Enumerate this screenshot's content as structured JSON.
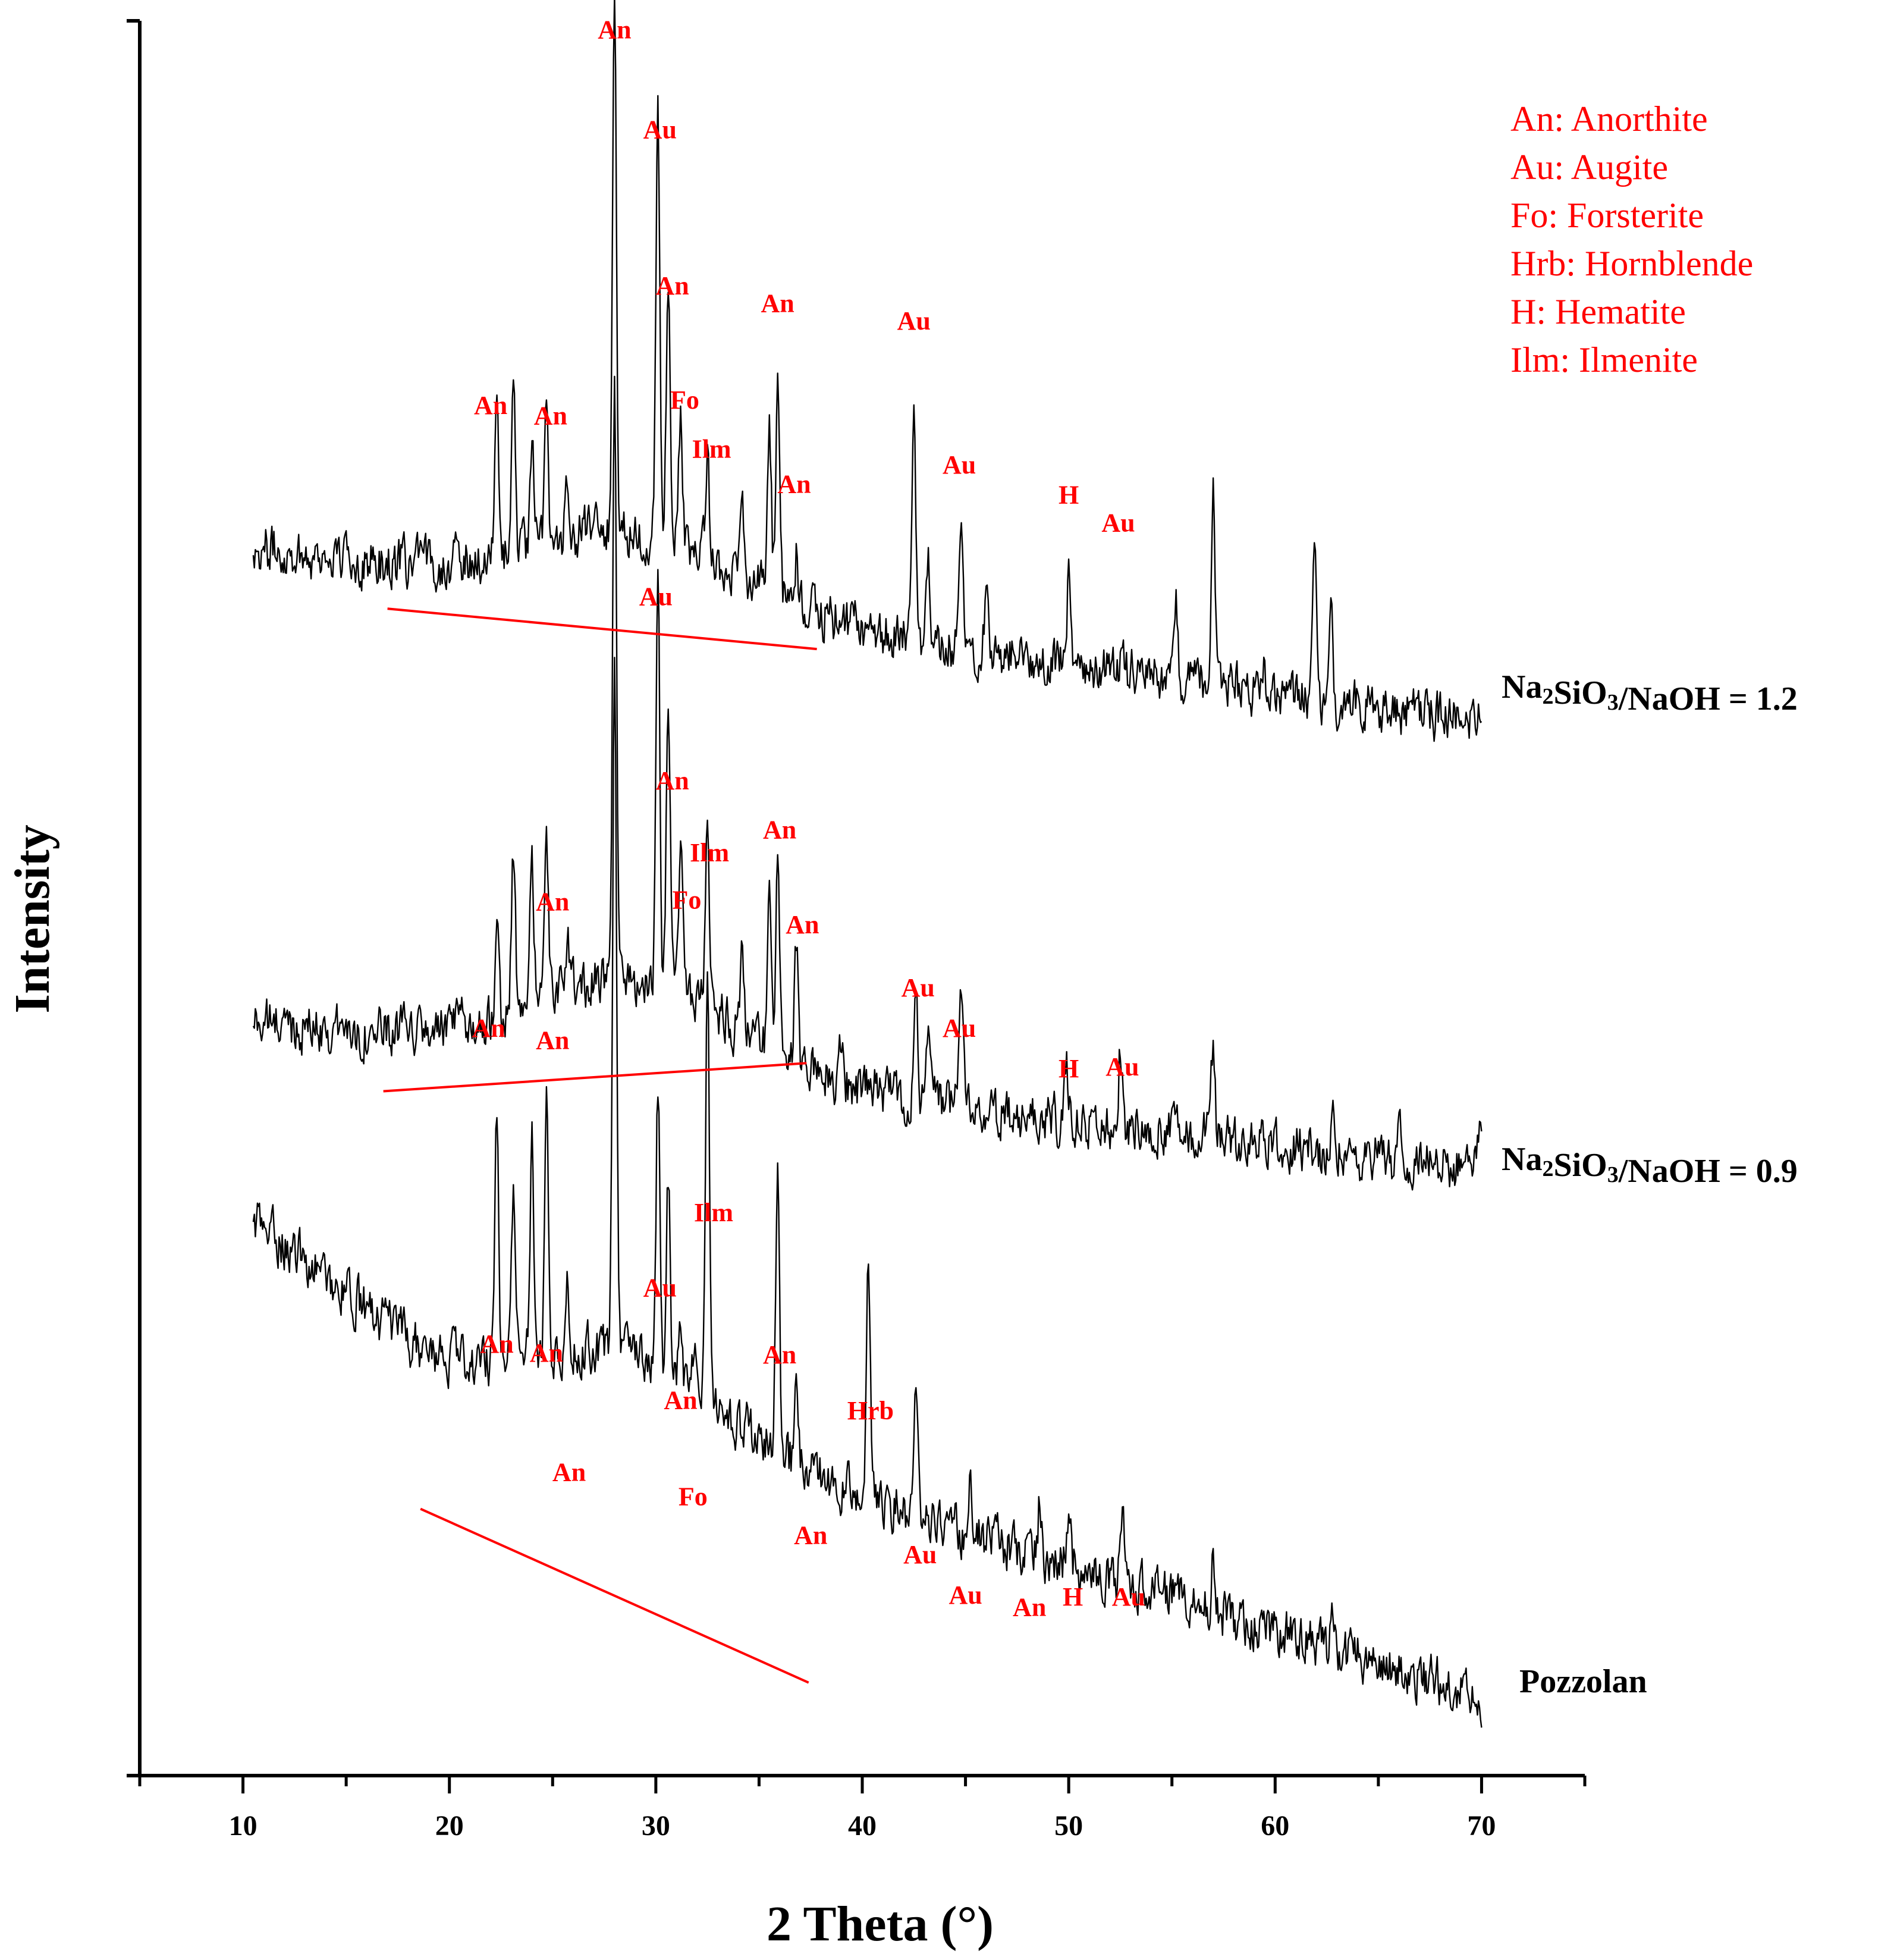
{
  "chart_data": {
    "type": "line",
    "title": "",
    "xlabel": "2 Theta (°)",
    "ylabel": "Intensity",
    "xlim": [
      5,
      75
    ],
    "ylim": [
      0,
      100
    ],
    "xticks": [
      10,
      20,
      30,
      40,
      50,
      60,
      70
    ],
    "legend": {
      "placement": "top-right",
      "entries": [
        "An: Anorthite",
        "Au: Augite",
        "Fo: Forsterite",
        "Hrb: Hornblende",
        "H: Hematite",
        "Ilm: Ilmenite"
      ]
    },
    "series": [
      {
        "name": "Na2SiO3/NaOH = 1.2",
        "label_parts": {
          "pre": "Na",
          "sub1": "2",
          "mid": "SiO",
          "sub2": "3",
          "post": "/NaOH = 1.2"
        },
        "x_start": 10.5,
        "x_end": 70.0,
        "base_start": 70.0,
        "base_end": 60.0,
        "noise": 2.2,
        "peaks": [
          [
            22.3,
            8
          ],
          [
            23.1,
            9
          ],
          [
            24.0,
            5
          ],
          [
            24.7,
            7
          ],
          [
            25.7,
            3
          ],
          [
            28.0,
            30
          ],
          [
            30.1,
            24
          ],
          [
            30.6,
            15
          ],
          [
            31.2,
            7
          ],
          [
            32.5,
            6
          ],
          [
            34.2,
            4
          ],
          [
            35.5,
            10
          ],
          [
            35.9,
            13
          ],
          [
            36.8,
            3
          ],
          [
            42.5,
            14
          ],
          [
            43.2,
            5
          ],
          [
            44.8,
            6
          ],
          [
            46.0,
            3
          ],
          [
            50.0,
            5
          ],
          [
            52.6,
            3
          ],
          [
            55.2,
            4
          ],
          [
            57.0,
            11
          ],
          [
            59.4,
            2
          ],
          [
            61.9,
            9
          ],
          [
            62.7,
            7
          ]
        ],
        "amorphous_hump": {
          "center": 29.0,
          "amp": 4,
          "width": 7
        },
        "color": "#000000"
      },
      {
        "name": "Na2SiO3/NaOH = 0.9",
        "label_parts": {
          "pre": "Na",
          "sub1": "2",
          "mid": "SiO",
          "sub2": "3",
          "post": "/NaOH = 0.9"
        },
        "x_start": 10.5,
        "x_end": 70.0,
        "base_start": 43.0,
        "base_end": 34.5,
        "noise": 2.2,
        "peaks": [
          [
            22.3,
            6
          ],
          [
            23.1,
            9
          ],
          [
            24.0,
            8
          ],
          [
            24.7,
            9
          ],
          [
            25.7,
            3
          ],
          [
            28.0,
            33
          ],
          [
            30.1,
            22
          ],
          [
            30.6,
            17
          ],
          [
            31.2,
            9
          ],
          [
            32.5,
            12
          ],
          [
            34.2,
            4
          ],
          [
            35.5,
            9
          ],
          [
            35.9,
            13
          ],
          [
            36.8,
            7
          ],
          [
            39.0,
            2
          ],
          [
            42.6,
            7
          ],
          [
            43.2,
            4
          ],
          [
            44.8,
            6
          ],
          [
            49.9,
            3
          ],
          [
            52.5,
            5
          ],
          [
            57.0,
            5
          ],
          [
            62.8,
            4
          ],
          [
            66.0,
            2
          ],
          [
            69.9,
            2
          ]
        ],
        "amorphous_hump": {
          "center": 29.0,
          "amp": 5,
          "width": 7
        },
        "color": "#000000"
      },
      {
        "name": "Pozzolan",
        "label_parts": {
          "pre": "Pozzolan",
          "sub1": "",
          "mid": "",
          "sub2": "",
          "post": ""
        },
        "x_start": 10.5,
        "x_end": 70.0,
        "base_start": 27.0,
        "base_end": 4.5,
        "noise": 2.2,
        "peaks": [
          [
            22.3,
            14
          ],
          [
            23.1,
            10
          ],
          [
            24.0,
            13
          ],
          [
            24.7,
            15
          ],
          [
            25.7,
            4
          ],
          [
            28.0,
            40
          ],
          [
            30.1,
            16
          ],
          [
            30.6,
            11
          ],
          [
            31.2,
            4
          ],
          [
            31.9,
            3
          ],
          [
            32.5,
            25
          ],
          [
            35.9,
            17
          ],
          [
            36.8,
            6
          ],
          [
            40.3,
            14
          ],
          [
            42.6,
            8
          ],
          [
            45.2,
            3
          ],
          [
            48.6,
            3
          ],
          [
            50.0,
            3
          ],
          [
            52.6,
            4
          ],
          [
            57.0,
            3
          ],
          [
            62.8,
            2
          ]
        ],
        "amorphous_hump": {
          "center": 29.0,
          "amp": 4,
          "width": 6
        },
        "color": "#000000"
      }
    ],
    "baselines": [
      {
        "series": "Na2SiO3/NaOH = 1.2",
        "from": [
          17.0,
          66.5
        ],
        "to": [
          37.8,
          64.2
        ]
      },
      {
        "series": "Na2SiO3/NaOH = 0.9",
        "from": [
          16.8,
          39.0
        ],
        "to": [
          37.3,
          40.6
        ]
      },
      {
        "series": "Pozzolan",
        "from": [
          18.6,
          15.2
        ],
        "to": [
          37.4,
          5.3
        ]
      }
    ],
    "annotations": [
      {
        "series": "Na2SiO3/NaOH = 1.2",
        "text": "An",
        "x": 28.0,
        "y": 99.0
      },
      {
        "series": "Na2SiO3/NaOH = 1.2",
        "text": "Au",
        "x": 30.2,
        "y": 93.3
      },
      {
        "series": "Na2SiO3/NaOH = 1.2",
        "text": "An",
        "x": 30.8,
        "y": 84.4
      },
      {
        "series": "Na2SiO3/NaOH = 1.2",
        "text": "An",
        "x": 35.9,
        "y": 83.4
      },
      {
        "series": "Na2SiO3/NaOH = 1.2",
        "text": "Au",
        "x": 42.5,
        "y": 82.4
      },
      {
        "series": "Na2SiO3/NaOH = 1.2",
        "text": "An",
        "x": 22.0,
        "y": 77.6
      },
      {
        "series": "Na2SiO3/NaOH = 1.2",
        "text": "An",
        "x": 24.9,
        "y": 77.0
      },
      {
        "series": "Na2SiO3/NaOH = 1.2",
        "text": "Fo",
        "x": 31.4,
        "y": 77.9
      },
      {
        "series": "Na2SiO3/NaOH = 1.2",
        "text": "Ilm",
        "x": 32.7,
        "y": 75.1
      },
      {
        "series": "Na2SiO3/NaOH = 1.2",
        "text": "An",
        "x": 36.7,
        "y": 73.1
      },
      {
        "series": "Na2SiO3/NaOH = 1.2",
        "text": "Au",
        "x": 44.7,
        "y": 74.2
      },
      {
        "series": "Na2SiO3/NaOH = 1.2",
        "text": "H",
        "x": 50.0,
        "y": 72.5
      },
      {
        "series": "Na2SiO3/NaOH = 1.2",
        "text": "Au",
        "x": 52.4,
        "y": 70.9
      },
      {
        "series": "Na2SiO3/NaOH = 0.9",
        "text": "Au",
        "x": 30.0,
        "y": 66.7
      },
      {
        "series": "Na2SiO3/NaOH = 0.9",
        "text": "An",
        "x": 30.8,
        "y": 56.2
      },
      {
        "series": "Na2SiO3/NaOH = 0.9",
        "text": "An",
        "x": 36.0,
        "y": 53.4
      },
      {
        "series": "Na2SiO3/NaOH = 0.9",
        "text": "Ilm",
        "x": 32.6,
        "y": 52.1
      },
      {
        "series": "Na2SiO3/NaOH = 0.9",
        "text": "Fo",
        "x": 31.5,
        "y": 49.4
      },
      {
        "series": "Na2SiO3/NaOH = 0.9",
        "text": "An",
        "x": 25.0,
        "y": 49.3
      },
      {
        "series": "Na2SiO3/NaOH = 0.9",
        "text": "An",
        "x": 37.1,
        "y": 48.0
      },
      {
        "series": "Na2SiO3/NaOH = 0.9",
        "text": "Au",
        "x": 42.7,
        "y": 44.4
      },
      {
        "series": "Na2SiO3/NaOH = 0.9",
        "text": "An",
        "x": 21.9,
        "y": 42.1
      },
      {
        "series": "Na2SiO3/NaOH = 0.9",
        "text": "An",
        "x": 25.0,
        "y": 41.4
      },
      {
        "series": "Na2SiO3/NaOH = 0.9",
        "text": "Au",
        "x": 44.7,
        "y": 42.1
      },
      {
        "series": "Na2SiO3/NaOH = 0.9",
        "text": "H",
        "x": 50.0,
        "y": 39.8
      },
      {
        "series": "Na2SiO3/NaOH = 0.9",
        "text": "Au",
        "x": 52.6,
        "y": 39.9
      },
      {
        "series": "Pozzolan",
        "text": "Ilm",
        "x": 32.8,
        "y": 31.6
      },
      {
        "series": "Pozzolan",
        "text": "Au",
        "x": 30.2,
        "y": 27.3
      },
      {
        "series": "Pozzolan",
        "text": "An",
        "x": 22.3,
        "y": 24.1
      },
      {
        "series": "Pozzolan",
        "text": "An",
        "x": 24.7,
        "y": 23.6
      },
      {
        "series": "Pozzolan",
        "text": "An",
        "x": 36.0,
        "y": 23.5
      },
      {
        "series": "Pozzolan",
        "text": "Hrb",
        "x": 40.4,
        "y": 20.3
      },
      {
        "series": "Pozzolan",
        "text": "An",
        "x": 31.2,
        "y": 20.9
      },
      {
        "series": "Pozzolan",
        "text": "An",
        "x": 25.8,
        "y": 16.8
      },
      {
        "series": "Pozzolan",
        "text": "Fo",
        "x": 31.8,
        "y": 15.4
      },
      {
        "series": "Pozzolan",
        "text": "An",
        "x": 37.5,
        "y": 13.2
      },
      {
        "series": "Pozzolan",
        "text": "Au",
        "x": 42.8,
        "y": 12.1
      },
      {
        "series": "Pozzolan",
        "text": "Au",
        "x": 45.0,
        "y": 9.8
      },
      {
        "series": "Pozzolan",
        "text": "An",
        "x": 48.1,
        "y": 9.1
      },
      {
        "series": "Pozzolan",
        "text": "H",
        "x": 50.2,
        "y": 9.7
      },
      {
        "series": "Pozzolan",
        "text": "Au",
        "x": 52.9,
        "y": 9.7
      }
    ],
    "colors": {
      "axis": "#000000",
      "line": "#000000",
      "annotation": "#ff0000",
      "baseline": "#ff0000"
    }
  }
}
